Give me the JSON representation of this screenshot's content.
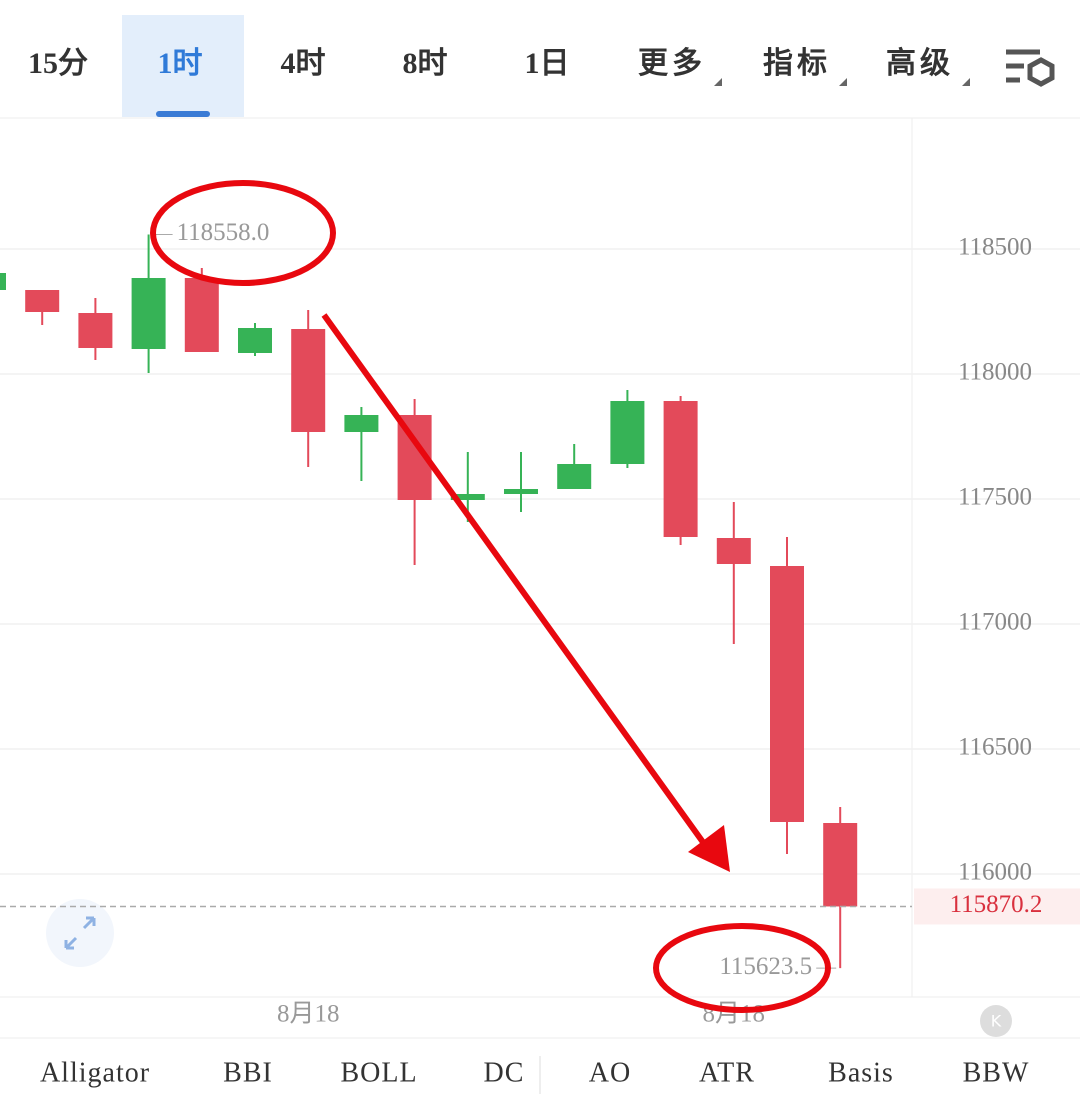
{
  "ui": {
    "tabs": [
      "15分",
      "1时",
      "4时",
      "8时",
      "1日",
      "更多",
      "指标",
      "高级"
    ],
    "active_tab": 1,
    "indicators": [
      "Alligator",
      "BBI",
      "BOLL",
      "DC",
      "AO",
      "ATR",
      "Basis",
      "BBW"
    ]
  },
  "chart_data": {
    "type": "candlestick",
    "categories": [
      null,
      null,
      null,
      null,
      null,
      null,
      "8月18",
      null,
      null,
      null,
      null,
      null,
      null,
      null,
      "8月18",
      null,
      null
    ],
    "open": [
      118336,
      118336,
      118244,
      118100,
      118384,
      118084,
      118180,
      117768,
      117836,
      117496,
      117520,
      117540,
      117640,
      117892,
      117344,
      117232,
      116204
    ],
    "high": [
      118404,
      118336,
      118304,
      118558,
      118424,
      118204,
      118256,
      117868,
      117900,
      117688,
      117688,
      117720,
      117936,
      117912,
      117488,
      117348,
      116268
    ],
    "low": [
      118336,
      118196,
      118056,
      118004,
      118088,
      118072,
      117628,
      117572,
      117236,
      117408,
      117448,
      117540,
      117624,
      117316,
      116920,
      116080,
      115623.5
    ],
    "close": [
      118404,
      118248,
      118104,
      118384,
      118088,
      118184,
      117768,
      117836,
      117496,
      117520,
      117540,
      117640,
      117892,
      117348,
      117240,
      116208,
      115870.2
    ],
    "up_color": "#36b356",
    "down_color": "#e34a5a",
    "ylim": [
      115508,
      119024
    ],
    "yticks": [
      116000,
      116500,
      117000,
      117500,
      118000,
      118500
    ],
    "grid": true,
    "annotations": [
      {
        "value": 118558,
        "label": "118558.0",
        "index": 3
      },
      {
        "value": 115623.5,
        "label": "115623.5",
        "index": 16
      }
    ],
    "last_price": {
      "value": 115870.2,
      "label": "115870.2"
    }
  }
}
